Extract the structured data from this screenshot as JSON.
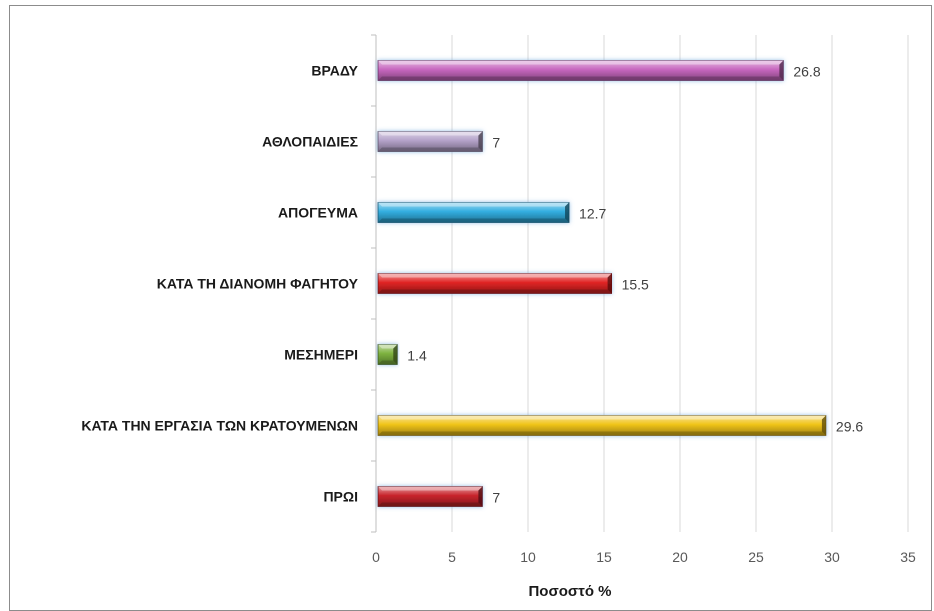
{
  "chart_data": {
    "type": "bar",
    "orientation": "horizontal",
    "categories": [
      "ΒΡΑΔΥ",
      "ΑΘΛΟΠΑΙΔΙΕΣ",
      "ΑΠΟΓΕΥΜΑ",
      "ΚΑΤΑ ΤΗ ΔΙΑΝΟΜΗ ΦΑΓΗΤΟΥ",
      "ΜΕΣΗΜΕΡΙ",
      "ΚΑΤΑ ΤΗΝ ΕΡΓΑΣΙΑ ΤΩΝ ΚΡΑΤΟΥΜΕΝΩΝ",
      "ΠΡΩΙ"
    ],
    "values": [
      26.8,
      7,
      12.7,
      15.5,
      1.4,
      29.6,
      7
    ],
    "value_labels": [
      "26.8",
      "7",
      "12.7",
      "15.5",
      "1.4",
      "29.6",
      "7"
    ],
    "colors": [
      "#c767bf",
      "#b4a2c9",
      "#32aee0",
      "#e02424",
      "#7db23f",
      "#f0c419",
      "#c8242c"
    ],
    "title": "",
    "xlabel": "Ποσοστό %",
    "ylabel": "",
    "xlim": [
      0,
      35
    ],
    "xticks": [
      0,
      5,
      10,
      15,
      20,
      25,
      30,
      35
    ],
    "grid": "vertical",
    "legend": "none"
  }
}
